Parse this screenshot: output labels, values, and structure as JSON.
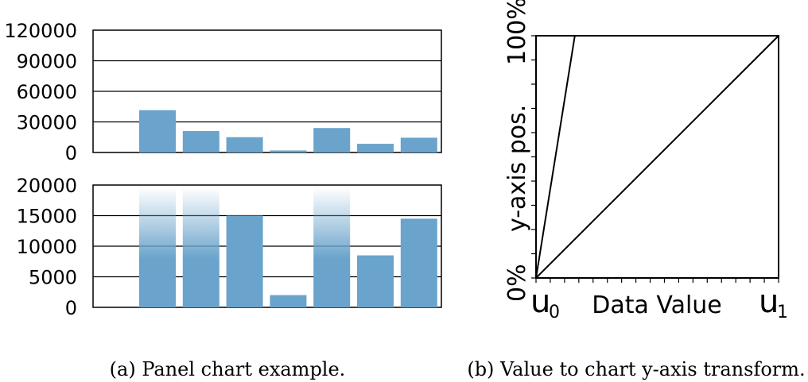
{
  "chart_data": [
    {
      "type": "bar",
      "chart_kind": "panel-bar",
      "caption": "(a) Panel chart example.",
      "bar_color": "#6aa3cb",
      "values": [
        41500,
        21000,
        15000,
        2000,
        24000,
        8500,
        14500
      ],
      "panels": [
        {
          "ylim": [
            0,
            120000
          ],
          "ticks": [
            "0",
            "30000",
            "60000",
            "90000",
            "120000"
          ],
          "tick_values": [
            0,
            30000,
            60000,
            90000,
            120000
          ]
        },
        {
          "ylim": [
            0,
            20000
          ],
          "ticks": [
            "0",
            "5000",
            "10000",
            "15000",
            "20000"
          ],
          "tick_values": [
            0,
            5000,
            10000,
            15000,
            20000
          ]
        }
      ],
      "overflow_note": "bars exceeding the lower panel range are drawn with a fading top"
    },
    {
      "type": "line",
      "chart_kind": "transform",
      "caption": "(b) Value to chart y-axis transform.",
      "xlabel": "Data Value",
      "ylabel": "y-axis pos.",
      "y_tick_labels": [
        "0%",
        "100%"
      ],
      "x_start_label": "u",
      "x_start_sub": "0",
      "x_end_label": "u",
      "x_end_sub": "1",
      "xlim": [
        0,
        1
      ],
      "ylim": [
        0,
        1
      ],
      "series": [
        {
          "x": [
            0,
            0.16
          ],
          "y": [
            0,
            1
          ]
        },
        {
          "x": [
            0,
            1
          ],
          "y": [
            0,
            1
          ]
        }
      ]
    }
  ]
}
